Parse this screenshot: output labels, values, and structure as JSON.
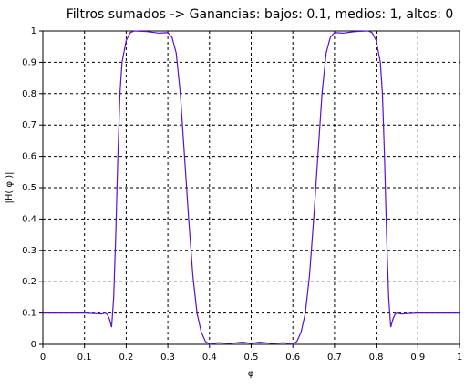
{
  "chart_data": {
    "type": "line",
    "title": "Filtros sumados -> Ganancias: bajos: 0.1, medios: 1, altos: 0",
    "x_label": "φ",
    "y_label": "|H(   φ   )|",
    "x": [
      0,
      0.05,
      0.1,
      0.13,
      0.14,
      0.15,
      0.155,
      0.16,
      0.165,
      0.17,
      0.175,
      0.18,
      0.185,
      0.19,
      0.2,
      0.21,
      0.22,
      0.25,
      0.28,
      0.3,
      0.31,
      0.32,
      0.33,
      0.34,
      0.35,
      0.36,
      0.37,
      0.38,
      0.39,
      0.4,
      0.42,
      0.45,
      0.48,
      0.5,
      0.52,
      0.55,
      0.58,
      0.6,
      0.61,
      0.62,
      0.63,
      0.64,
      0.65,
      0.66,
      0.67,
      0.68,
      0.69,
      0.7,
      0.72,
      0.75,
      0.78,
      0.79,
      0.8,
      0.81,
      0.815,
      0.82,
      0.825,
      0.83,
      0.835,
      0.84,
      0.845,
      0.85,
      0.86,
      0.87,
      0.9,
      0.95,
      1
    ],
    "series": [
      {
        "color": "#5a10d0",
        "values": [
          0.1,
          0.1,
          0.1,
          0.098,
          0.097,
          0.1,
          0.095,
          0.08,
          0.055,
          0.15,
          0.35,
          0.6,
          0.8,
          0.9,
          0.97,
          0.995,
          1.0,
          0.998,
          0.993,
          0.995,
          0.98,
          0.93,
          0.8,
          0.6,
          0.4,
          0.22,
          0.1,
          0.04,
          0.01,
          0.0,
          0.005,
          0.003,
          0.007,
          0.003,
          0.007,
          0.003,
          0.005,
          0.0,
          0.01,
          0.04,
          0.1,
          0.22,
          0.4,
          0.6,
          0.8,
          0.93,
          0.98,
          0.995,
          0.993,
          0.998,
          1.0,
          0.995,
          0.97,
          0.9,
          0.8,
          0.6,
          0.35,
          0.15,
          0.055,
          0.08,
          0.095,
          0.1,
          0.097,
          0.098,
          0.1,
          0.1,
          0.1
        ]
      }
    ],
    "xlim": [
      0,
      1
    ],
    "ylim": [
      0,
      1
    ],
    "xticks": [
      0,
      0.1,
      0.2,
      0.3,
      0.4,
      0.5,
      0.6,
      0.7,
      0.8,
      0.9,
      1
    ],
    "yticks": [
      0,
      0.1,
      0.2,
      0.3,
      0.4,
      0.5,
      0.6,
      0.7,
      0.8,
      0.9,
      1
    ],
    "grid": true
  }
}
